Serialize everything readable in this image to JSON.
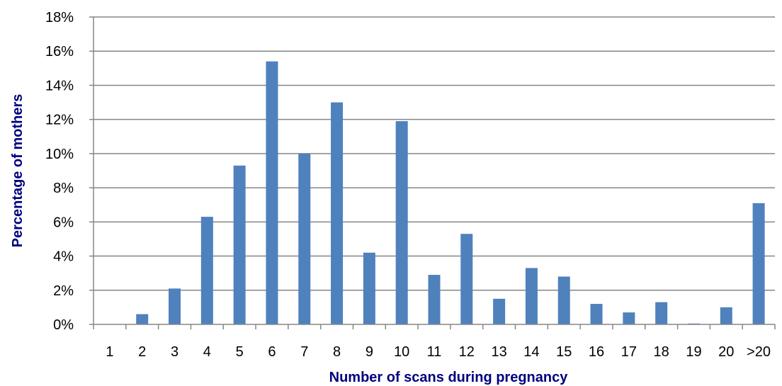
{
  "chart_data": {
    "type": "bar",
    "title": "",
    "xlabel": "Number of scans during pregnancy",
    "ylabel": "Percentage of mothers",
    "categories": [
      "1",
      "2",
      "3",
      "4",
      "5",
      "6",
      "7",
      "8",
      "9",
      "10",
      "11",
      "12",
      "13",
      "14",
      "15",
      "16",
      "17",
      "18",
      "19",
      "20",
      ">20"
    ],
    "values": [
      0,
      0.6,
      2.1,
      6.3,
      9.3,
      15.4,
      10.0,
      13.0,
      4.2,
      11.9,
      2.9,
      5.3,
      1.5,
      3.3,
      2.8,
      1.2,
      0.7,
      1.3,
      0.05,
      1.0,
      7.1
    ],
    "ylim": [
      0,
      18
    ],
    "yticks": [
      0,
      2,
      4,
      6,
      8,
      10,
      12,
      14,
      16,
      18
    ],
    "ytick_labels": [
      "0%",
      "2%",
      "4%",
      "6%",
      "8%",
      "10%",
      "12%",
      "14%",
      "16%",
      "18%"
    ],
    "grid": true,
    "legend": "none",
    "colors": {
      "bar": "#4F81BD",
      "grid": "#868686",
      "axis_title": "#000080"
    }
  }
}
